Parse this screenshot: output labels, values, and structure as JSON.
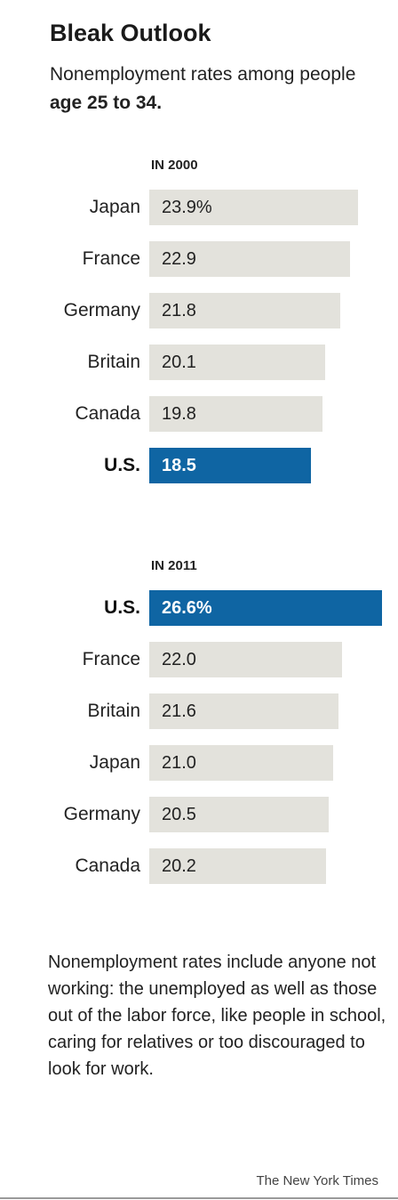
{
  "header": {
    "title": "Bleak Outlook",
    "subtitle_prefix": "Nonemployment rates among people ",
    "subtitle_bold": "age 25 to 34."
  },
  "chart_data": [
    {
      "type": "bar",
      "orientation": "horizontal",
      "title": "IN 2000",
      "categories": [
        "Japan",
        "France",
        "Germany",
        "Britain",
        "Canada",
        "U.S."
      ],
      "values": [
        23.9,
        22.9,
        21.8,
        20.1,
        19.8,
        18.5
      ],
      "value_labels": [
        "23.9%",
        "22.9",
        "21.8",
        "20.1",
        "19.8",
        "18.5"
      ],
      "highlight": "U.S.",
      "colors": {
        "default": "#e3e2dc",
        "highlight": "#0f65a3"
      }
    },
    {
      "type": "bar",
      "orientation": "horizontal",
      "title": "IN 2011",
      "categories": [
        "U.S.",
        "France",
        "Britain",
        "Japan",
        "Germany",
        "Canada"
      ],
      "values": [
        26.6,
        22.0,
        21.6,
        21.0,
        20.5,
        20.2
      ],
      "value_labels": [
        "26.6%",
        "22.0",
        "21.6",
        "21.0",
        "20.5",
        "20.2"
      ],
      "highlight": "U.S.",
      "colors": {
        "default": "#e3e2dc",
        "highlight": "#0f65a3"
      }
    }
  ],
  "note": "Nonemployment rates include anyone not working: the unemployed as well as those out of the labor force, like people in school, caring for relatives or too discouraged to look for work.",
  "credit": "The New York Times"
}
